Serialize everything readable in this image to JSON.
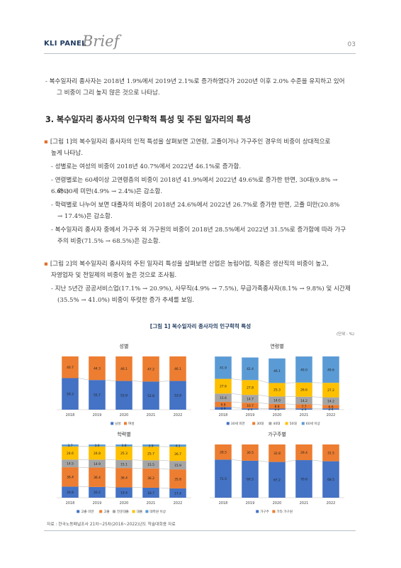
{
  "header": {
    "brand": "KLI PANEL",
    "brand_script": "Brief",
    "page": "03"
  },
  "intro": {
    "line1": "- 복수일자리 종사자는 2018년 1.9%에서 2019년 2.1%로 증가하였다가 2020년 이후 2.0% 수준을 유지하고 있어",
    "line2": "그 비중이 그리 높지 않은 것으로 나타남."
  },
  "section": {
    "title": "3. 복수일자리 종사자의 인구학적 특성 및 주된 일자리의 특성"
  },
  "block1": {
    "bullet": "▪",
    "lead1": "[그림 1]의 복수일자리 종사자의 인적 특성을 살펴보면 고연령, 고졸이거나 가구주인 경우의 비중이 상대적으로",
    "lead2": "높게 나타남.",
    "b1": "- 성별로는 여성의 비중이 2018년 40.7%에서 2022년 46.1%로 증가함.",
    "b2a": "- 연령별로는 60세이상 고연령층의 비중이 2018년 41.9%에서 2022년 49.6%로 증가한 반면, 30대(9.8% → 6.6%)",
    "b2b": "와 30세 미만(4.9% → 2.4%)은 감소함.",
    "b3a": "- 학력별로 나누어 보면 대졸자의 비중이 2018년 24.6%에서 2022년 26.7%로 증가한 반면, 고졸 미만(20.8%",
    "b3b": "→ 17.4%)은 감소함.",
    "b4a": "- 복수일자리 종사자 중에서 가구주 외 가구원의 비중이 2018년 28.5%에서 2022년 31.5%로 증가함에 따라 가구",
    "b4b": "주의 비중(71.5% → 68.5%)은 감소함."
  },
  "block2": {
    "bullet": "▪",
    "lead1": "[그림 2]의 복수일자리 종사자의 주된 일자리 특성을 살펴보면 산업은 농림어업, 직종은 생산직의 비중이 높고,",
    "lead2": "자영업자 및 전일제의 비중이 높은 것으로 조사됨.",
    "b1a": "- 지난 5년간 공공서비스업(17.1% → 20.9%), 사무직(4.9% → 7.5%), 무급가족종사자(8.1% → 9.8%) 및 시간제",
    "b1b": "(35.5% → 41.0%) 비중이 뚜렷한 증가 추세를 보임."
  },
  "figure": {
    "title": "[그림 1] 복수일자리 종사자의 인구학적 특성",
    "unit": "(단위 : %)"
  },
  "colors": {
    "blue": "#4472c4",
    "orange": "#ed7d31",
    "gray": "#a5a5a5",
    "gold": "#ffc000",
    "lightblue": "#5b9bd5"
  },
  "chart_data": [
    {
      "type": "bar",
      "stacked": true,
      "title": "성별",
      "categories": [
        "2018",
        "2019",
        "2020",
        "2021",
        "2022"
      ],
      "series": [
        {
          "name": "남성",
          "values": [
            59.3,
            55.7,
            53.9,
            52.8,
            53.9
          ]
        },
        {
          "name": "여성",
          "values": [
            40.7,
            44.3,
            46.1,
            47.2,
            46.1
          ]
        }
      ],
      "ylim": [
        0,
        100
      ],
      "legend": "bottom"
    },
    {
      "type": "bar",
      "stacked": true,
      "title": "연령별",
      "categories": [
        "2018",
        "2019",
        "2020",
        "2021",
        "2022"
      ],
      "series": [
        {
          "name": "30세 미만",
          "values": [
            4.9,
            2.4,
            2.0,
            2.4,
            2.4
          ]
        },
        {
          "name": "30대",
          "values": [
            9.8,
            10.7,
            8.8,
            7.7,
            6.6
          ]
        },
        {
          "name": "40대",
          "values": [
            15.6,
            14.7,
            14.0,
            14.2,
            14.2
          ]
        },
        {
          "name": "50대",
          "values": [
            27.6,
            27.8,
            25.3,
            26.6,
            27.2
          ]
        },
        {
          "name": "60세 이상",
          "values": [
            41.9,
            42.4,
            46.1,
            49.0,
            49.6
          ]
        }
      ],
      "ylim": [
        0,
        100
      ],
      "legend": "bottom"
    },
    {
      "type": "bar",
      "stacked": true,
      "title": "학력별",
      "categories": [
        "2018",
        "2019",
        "2020",
        "2021",
        "2022"
      ],
      "series": [
        {
          "name": "고졸 미만",
          "values": [
            20.8,
            20.2,
            19.4,
            18.7,
            17.4
          ]
        },
        {
          "name": "고졸",
          "values": [
            36.4,
            36.4,
            36.4,
            36.2,
            35.8
          ]
        },
        {
          "name": "전문대졸",
          "values": [
            14.5,
            14.9,
            15.1,
            15.5,
            15.9
          ]
        },
        {
          "name": "대졸",
          "values": [
            24.6,
            24.8,
            25.3,
            25.7,
            26.7
          ]
        },
        {
          "name": "대학원 이상",
          "values": [
            3.7,
            3.6,
            3.8,
            3.9,
            4.1
          ]
        }
      ],
      "ylim": [
        0,
        100
      ],
      "legend": "bottom"
    },
    {
      "type": "bar",
      "stacked": true,
      "title": "가구주별",
      "categories": [
        "2018",
        "2019",
        "2020",
        "2021",
        "2022"
      ],
      "series": [
        {
          "name": "가구주",
          "values": [
            71.5,
            69.5,
            67.2,
            70.6,
            68.5
          ]
        },
        {
          "name": "기타 가구원",
          "values": [
            28.5,
            30.5,
            32.8,
            29.4,
            31.5
          ]
        }
      ],
      "ylim": [
        0,
        100
      ],
      "legend": "bottom"
    }
  ],
  "source": "자료 : 한국노동패널조사 21차~25차(2018~2022)년도 학술대회용 자료"
}
